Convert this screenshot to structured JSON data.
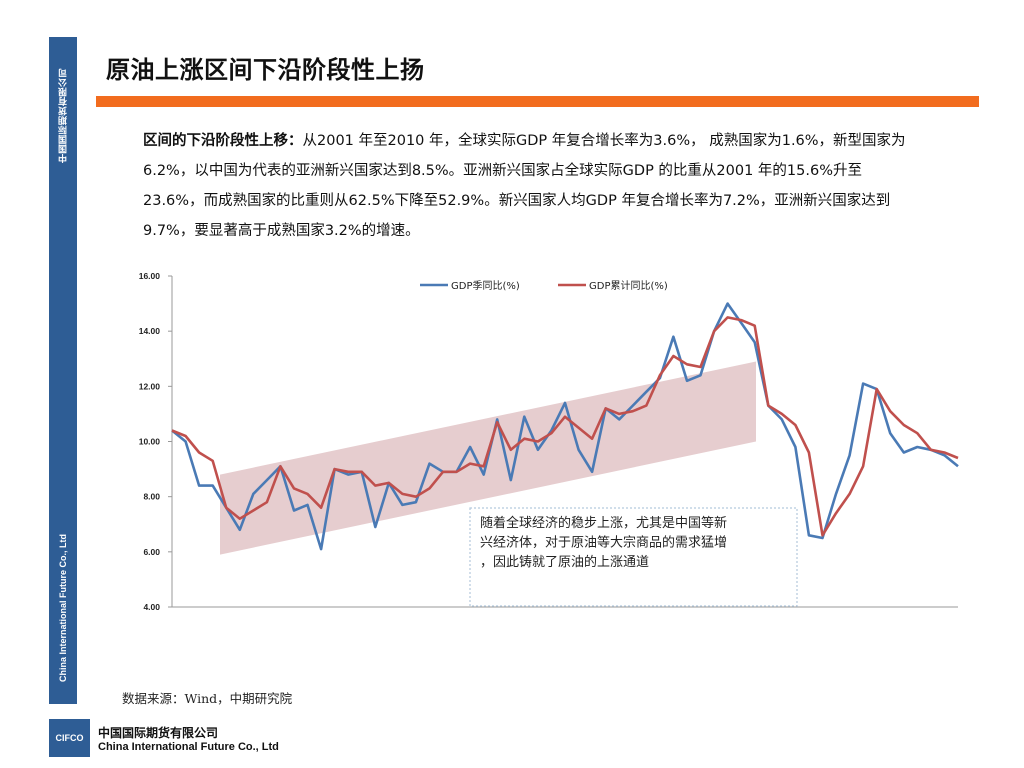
{
  "sidebar": {
    "top_text": "中国国际期货有限公司",
    "bottom_text": "China International Future Co., Ltd"
  },
  "header": {
    "title": "原油上涨区间下沿阶段性上扬"
  },
  "body": {
    "lead": "区间的下沿阶段性上移：",
    "text": "从2001 年至2010 年，全球实际GDP 年复合增长率为3.6%， 成熟国家为1.6%，新型国家为6.2%，以中国为代表的亚洲新兴国家达到8.5%。亚洲新兴国家占全球实际GDP 的比重从2001 年的15.6%升至23.6%，而成熟国家的比重则从62.5%下降至52.9%。新兴国家人均GDP 年复合增长率为7.2%，亚洲新兴国家达到9.7%，要显著高于成熟国家3.2%的增速。"
  },
  "chart_data": {
    "type": "line",
    "ylim": [
      4,
      16
    ],
    "yticks": [
      "16.00",
      "14.00",
      "12.00",
      "10.00",
      "8.00",
      "6.00",
      "4.00"
    ],
    "legend_position": "top-center",
    "grid": false,
    "series": [
      {
        "name": "GDP季同比(%)",
        "color": "#4a7ab5",
        "values": [
          10.4,
          10.0,
          8.4,
          8.4,
          7.6,
          6.8,
          8.1,
          8.6,
          9.1,
          7.5,
          7.7,
          6.1,
          9.0,
          8.8,
          8.9,
          6.9,
          8.5,
          7.7,
          7.8,
          9.2,
          8.9,
          8.9,
          9.8,
          8.8,
          10.8,
          8.6,
          10.9,
          9.7,
          10.4,
          11.4,
          9.7,
          8.9,
          11.2,
          10.8,
          11.3,
          11.8,
          12.3,
          13.8,
          12.2,
          12.4,
          14.0,
          15.0,
          14.3,
          13.6,
          11.3,
          10.8,
          9.8,
          6.6,
          6.5,
          8.1,
          9.5,
          12.1,
          11.9,
          10.3,
          9.6,
          9.8,
          9.7,
          9.5,
          9.1
        ]
      },
      {
        "name": "GDP累计同比(%)",
        "color": "#c0504d",
        "values": [
          10.4,
          10.2,
          9.6,
          9.3,
          7.6,
          7.2,
          7.5,
          7.8,
          9.1,
          8.3,
          8.1,
          7.6,
          9.0,
          8.9,
          8.9,
          8.4,
          8.5,
          8.1,
          8.0,
          8.3,
          8.9,
          8.9,
          9.2,
          9.1,
          10.7,
          9.7,
          10.1,
          10.0,
          10.3,
          10.9,
          10.5,
          10.1,
          11.2,
          11.0,
          11.1,
          11.3,
          12.4,
          13.1,
          12.8,
          12.7,
          14.0,
          14.5,
          14.4,
          14.2,
          11.3,
          11.0,
          10.6,
          9.6,
          6.6,
          7.4,
          8.1,
          9.1,
          11.9,
          11.1,
          10.6,
          10.3,
          9.7,
          9.6,
          9.4
        ]
      }
    ],
    "channel_band": {
      "lower": [
        5.9,
        10.0
      ],
      "upper": [
        8.8,
        12.9
      ],
      "color": "#e6cdcf"
    },
    "annotation": "随着全球经济的稳步上涨，尤其是中国等新兴经济体，对于原油等大宗商品的需求猛增，因此铸就了原油的上涨通道"
  },
  "footer": {
    "source": "数据来源：Wind，中期研究院",
    "logo_text": "CIFCO",
    "company_cn": "中国国际期货有限公司",
    "company_en": "China International Future Co., Ltd"
  }
}
